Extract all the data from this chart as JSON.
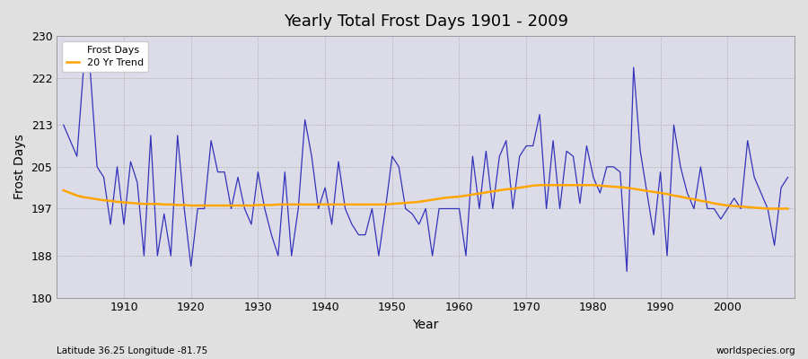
{
  "title": "Yearly Total Frost Days 1901 - 2009",
  "xlabel": "Year",
  "ylabel": "Frost Days",
  "footnote_left": "Latitude 36.25 Longitude -81.75",
  "footnote_right": "worldspecies.org",
  "line_color": "#3333bb",
  "trend_color": "#FFA500",
  "bg_color": "#e0e0e0",
  "plot_bg_color": "#dcdce8",
  "ylim": [
    180,
    230
  ],
  "yticks": [
    180,
    188,
    197,
    205,
    213,
    222,
    230
  ],
  "xlim": [
    1900,
    2010
  ],
  "xticks": [
    1910,
    1920,
    1930,
    1940,
    1950,
    1960,
    1970,
    1980,
    1990,
    2000
  ],
  "years": [
    1901,
    1902,
    1903,
    1904,
    1905,
    1906,
    1907,
    1908,
    1909,
    1910,
    1911,
    1912,
    1913,
    1914,
    1915,
    1916,
    1917,
    1918,
    1919,
    1920,
    1921,
    1922,
    1923,
    1924,
    1925,
    1926,
    1927,
    1928,
    1929,
    1930,
    1931,
    1932,
    1933,
    1934,
    1935,
    1936,
    1937,
    1938,
    1939,
    1940,
    1941,
    1942,
    1943,
    1944,
    1945,
    1946,
    1947,
    1948,
    1949,
    1950,
    1951,
    1952,
    1953,
    1954,
    1955,
    1956,
    1957,
    1958,
    1959,
    1960,
    1961,
    1962,
    1963,
    1964,
    1965,
    1966,
    1967,
    1968,
    1969,
    1970,
    1971,
    1972,
    1973,
    1974,
    1975,
    1976,
    1977,
    1978,
    1979,
    1980,
    1981,
    1982,
    1983,
    1984,
    1985,
    1986,
    1987,
    1988,
    1989,
    1990,
    1991,
    1992,
    1993,
    1994,
    1995,
    1996,
    1997,
    1998,
    1999,
    2000,
    2001,
    2002,
    2003,
    2004,
    2005,
    2006,
    2007,
    2008,
    2009
  ],
  "frost_days": [
    213,
    210,
    207,
    224,
    223,
    205,
    203,
    194,
    205,
    194,
    206,
    202,
    188,
    211,
    188,
    196,
    188,
    211,
    197,
    186,
    197,
    197,
    210,
    204,
    204,
    197,
    203,
    197,
    194,
    204,
    197,
    192,
    188,
    204,
    188,
    197,
    214,
    207,
    197,
    201,
    194,
    206,
    197,
    194,
    192,
    192,
    197,
    188,
    197,
    207,
    205,
    197,
    196,
    194,
    197,
    188,
    197,
    197,
    197,
    197,
    188,
    207,
    197,
    208,
    197,
    207,
    210,
    197,
    207,
    209,
    209,
    215,
    197,
    210,
    197,
    208,
    207,
    198,
    209,
    203,
    200,
    205,
    205,
    204,
    185,
    224,
    208,
    200,
    192,
    204,
    188,
    213,
    205,
    200,
    197,
    205,
    197,
    197,
    195,
    197,
    199,
    197,
    210,
    203,
    200,
    197,
    190,
    201,
    203
  ],
  "trend_days": [
    200.5,
    200.0,
    199.5,
    199.2,
    199.0,
    198.8,
    198.6,
    198.5,
    198.3,
    198.2,
    198.1,
    198.0,
    197.9,
    197.9,
    197.9,
    197.8,
    197.8,
    197.7,
    197.7,
    197.6,
    197.6,
    197.6,
    197.6,
    197.6,
    197.6,
    197.6,
    197.6,
    197.6,
    197.6,
    197.7,
    197.7,
    197.7,
    197.8,
    197.8,
    197.8,
    197.8,
    197.8,
    197.8,
    197.8,
    197.8,
    197.8,
    197.8,
    197.8,
    197.8,
    197.8,
    197.8,
    197.8,
    197.8,
    197.8,
    197.9,
    198.0,
    198.1,
    198.2,
    198.3,
    198.5,
    198.7,
    198.9,
    199.1,
    199.2,
    199.3,
    199.5,
    199.7,
    199.9,
    200.1,
    200.3,
    200.5,
    200.7,
    200.8,
    201.0,
    201.2,
    201.4,
    201.5,
    201.5,
    201.5,
    201.5,
    201.5,
    201.5,
    201.5,
    201.5,
    201.5,
    201.4,
    201.3,
    201.2,
    201.1,
    201.0,
    200.8,
    200.6,
    200.4,
    200.2,
    200.0,
    199.8,
    199.5,
    199.3,
    199.0,
    198.8,
    198.5,
    198.3,
    198.0,
    197.8,
    197.6,
    197.5,
    197.4,
    197.3,
    197.2,
    197.1,
    197.0,
    197.0,
    197.0,
    197.0
  ]
}
